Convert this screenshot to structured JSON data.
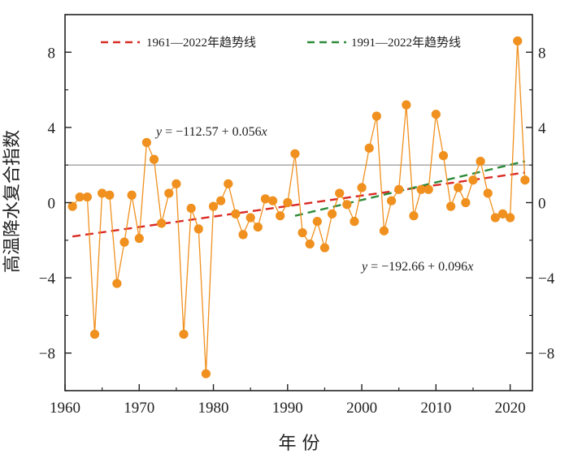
{
  "chart_data": {
    "type": "scatter",
    "xlabel": "年 份",
    "ylabel": "高温降水复合指数",
    "xlim": [
      1960,
      2023
    ],
    "ylim": [
      -10,
      10
    ],
    "x_ticks": [
      "1960",
      "1970",
      "1980",
      "1990",
      "2000",
      "2010",
      "2020"
    ],
    "y_ticks": [
      "8",
      "4",
      "0",
      "-4",
      "-8"
    ],
    "reference_line": 2,
    "series": [
      {
        "x": [
          1961,
          1962,
          1963,
          1964,
          1965,
          1966,
          1967,
          1968,
          1969,
          1970,
          1971,
          1972,
          1973,
          1974,
          1975,
          1976,
          1977,
          1978,
          1979,
          1980,
          1981,
          1982,
          1983,
          1984,
          1985,
          1986,
          1987,
          1988,
          1989,
          1990,
          1991,
          1992,
          1993,
          1994,
          1995,
          1996,
          1997,
          1998,
          1999,
          2000,
          2001,
          2002,
          2003,
          2004,
          2005,
          2006,
          2007,
          2008,
          2009,
          2010,
          2011,
          2012,
          2013,
          2014,
          2015,
          2016,
          2017,
          2018,
          2019,
          2020,
          2021,
          2022
        ],
        "values": [
          -0.2,
          0.3,
          0.3,
          -7.0,
          0.5,
          0.4,
          -4.3,
          -2.1,
          0.4,
          -1.9,
          3.2,
          2.3,
          -1.1,
          0.5,
          1.0,
          -7.0,
          -0.3,
          -1.4,
          -9.1,
          -0.2,
          0.1,
          1.0,
          -0.6,
          -1.7,
          -0.8,
          -1.3,
          0.2,
          0.1,
          -0.7,
          0.0,
          2.6,
          -1.6,
          -2.2,
          -1.0,
          -2.4,
          -0.6,
          0.5,
          -0.1,
          -1.0,
          0.8,
          2.9,
          4.6,
          -1.5,
          0.1,
          0.7,
          5.2,
          -0.7,
          0.7,
          0.7,
          4.7,
          2.5,
          -0.2,
          0.8,
          0.0,
          1.2,
          2.2,
          0.5,
          -0.8,
          -0.6,
          -0.8,
          8.6,
          1.2
        ]
      }
    ],
    "trends": [
      {
        "name": "1961—2022年趋势线",
        "x_range": [
          1961,
          2022
        ],
        "y_range": [
          -1.8,
          1.6
        ],
        "color": "#d92b23",
        "equation": "y = −112.57 + 0.056x"
      },
      {
        "name": "1991—2022年趋势线",
        "x_range": [
          1991,
          2022
        ],
        "y_range": [
          -0.7,
          2.2
        ],
        "color": "#2e8b3a",
        "equation": "y = −192.66 + 0.096x"
      }
    ],
    "colors": {
      "marker": "#f0901e",
      "line": "#f0901e",
      "reference": "#8c8c8c",
      "axis": "#222222"
    }
  }
}
